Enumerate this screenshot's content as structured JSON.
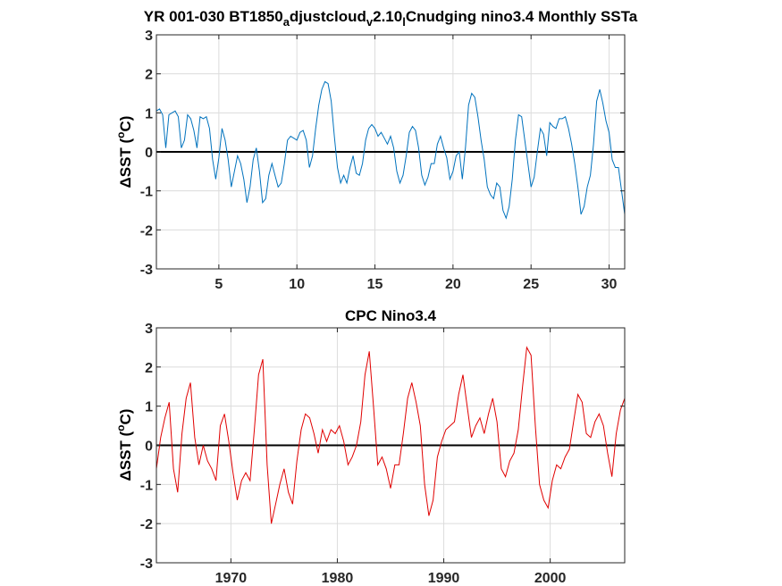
{
  "chart_data": [
    {
      "type": "line",
      "title": "YR 001-030 BT1850",
      "title_parts": [
        {
          "text": "YR 001-030 BT1850",
          "sub": false
        },
        {
          "text": "a",
          "sub": true
        },
        {
          "text": "djustcloud",
          "sub": false
        },
        {
          "text": "v",
          "sub": true
        },
        {
          "text": "2.10",
          "sub": false
        },
        {
          "text": "l",
          "sub": true
        },
        {
          "text": "Cnudging nino3.4 Monthly SSTa",
          "sub": false
        }
      ],
      "ylabel": "ΔSST (°C)",
      "ylabel_parts": {
        "pre": "ΔSST (",
        "sup": "o",
        "post": "C)"
      },
      "xlim": [
        1,
        31
      ],
      "ylim": [
        -3,
        3
      ],
      "xticks": [
        5,
        10,
        15,
        20,
        25,
        30
      ],
      "xtick_labels": [
        "5",
        "10",
        "15",
        "20",
        "25",
        "30"
      ],
      "yticks": [
        -3,
        -2,
        -1,
        0,
        1,
        2,
        3
      ],
      "ytick_labels": [
        "-3",
        "-2",
        "-1",
        "0",
        "1",
        "2",
        "3"
      ],
      "grid": true,
      "zero_line": true,
      "series": [
        {
          "color": "#0072bd",
          "x": [
            1.0,
            1.2,
            1.4,
            1.6,
            1.8,
            2.0,
            2.2,
            2.4,
            2.6,
            2.8,
            3.0,
            3.2,
            3.4,
            3.6,
            3.8,
            4.0,
            4.2,
            4.4,
            4.6,
            4.8,
            5.0,
            5.2,
            5.4,
            5.6,
            5.8,
            6.0,
            6.2,
            6.4,
            6.6,
            6.8,
            7.0,
            7.2,
            7.4,
            7.6,
            7.8,
            8.0,
            8.2,
            8.4,
            8.6,
            8.8,
            9.0,
            9.2,
            9.4,
            9.6,
            9.8,
            10.0,
            10.2,
            10.4,
            10.6,
            10.8,
            11.0,
            11.2,
            11.4,
            11.6,
            11.8,
            12.0,
            12.2,
            12.4,
            12.6,
            12.8,
            13.0,
            13.2,
            13.4,
            13.6,
            13.8,
            14.0,
            14.2,
            14.4,
            14.6,
            14.8,
            15.0,
            15.2,
            15.4,
            15.6,
            15.8,
            16.0,
            16.2,
            16.4,
            16.6,
            16.8,
            17.0,
            17.2,
            17.4,
            17.6,
            17.8,
            18.0,
            18.2,
            18.4,
            18.6,
            18.8,
            19.0,
            19.2,
            19.4,
            19.6,
            19.8,
            20.0,
            20.2,
            20.4,
            20.6,
            20.8,
            21.0,
            21.2,
            21.4,
            21.6,
            21.8,
            22.0,
            22.2,
            22.4,
            22.6,
            22.8,
            23.0,
            23.2,
            23.4,
            23.6,
            23.8,
            24.0,
            24.2,
            24.4,
            24.6,
            24.8,
            25.0,
            25.2,
            25.4,
            25.6,
            25.8,
            26.0,
            26.2,
            26.4,
            26.6,
            26.8,
            27.0,
            27.2,
            27.4,
            27.6,
            27.8,
            28.0,
            28.2,
            28.4,
            28.6,
            28.8,
            29.0,
            29.2,
            29.4,
            29.6,
            29.8,
            30.0,
            30.2,
            30.4,
            30.6,
            30.8,
            31.0
          ],
          "y": [
            1.05,
            1.1,
            0.95,
            0.1,
            0.95,
            1.0,
            1.05,
            0.9,
            0.1,
            0.3,
            0.95,
            0.85,
            0.55,
            0.1,
            0.9,
            0.85,
            0.9,
            0.6,
            -0.2,
            -0.7,
            -0.15,
            0.6,
            0.3,
            -0.2,
            -0.9,
            -0.5,
            -0.1,
            -0.3,
            -0.7,
            -1.3,
            -0.9,
            -0.2,
            0.1,
            -0.5,
            -1.3,
            -1.2,
            -0.6,
            -0.3,
            -0.6,
            -0.9,
            -0.8,
            -0.3,
            0.3,
            0.4,
            0.35,
            0.3,
            0.5,
            0.55,
            0.3,
            -0.4,
            -0.1,
            0.6,
            1.2,
            1.6,
            1.8,
            1.75,
            1.3,
            0.4,
            -0.4,
            -0.8,
            -0.6,
            -0.8,
            -0.4,
            -0.1,
            -0.55,
            -0.6,
            -0.3,
            0.3,
            0.6,
            0.7,
            0.6,
            0.4,
            0.5,
            0.35,
            0.2,
            0.4,
            0.1,
            -0.5,
            -0.8,
            -0.6,
            -0.1,
            0.5,
            0.65,
            0.55,
            0.1,
            -0.6,
            -0.85,
            -0.65,
            -0.3,
            -0.3,
            0.2,
            0.4,
            0.1,
            -0.15,
            -0.7,
            -0.5,
            -0.1,
            0.0,
            -0.7,
            0.1,
            1.2,
            1.5,
            1.4,
            0.9,
            0.3,
            -0.2,
            -0.9,
            -1.1,
            -1.2,
            -0.8,
            -0.9,
            -1.5,
            -1.7,
            -1.4,
            -0.7,
            0.3,
            0.95,
            0.9,
            0.3,
            -0.3,
            -0.9,
            -0.65,
            0.0,
            0.6,
            0.45,
            -0.1,
            0.75,
            0.65,
            0.6,
            0.85,
            0.85,
            0.9,
            0.6,
            0.2,
            -0.3,
            -0.9,
            -1.6,
            -1.4,
            -0.9,
            -0.6,
            0.2,
            1.3,
            1.6,
            1.25,
            0.8,
            0.5,
            -0.2,
            -0.4,
            -0.4,
            -1.0,
            -1.6
          ]
        }
      ]
    },
    {
      "type": "line",
      "title": "CPC Nino3.4",
      "ylabel": "ΔSST (°C)",
      "ylabel_parts": {
        "pre": "ΔSST (",
        "sup": "o",
        "post": "C)"
      },
      "xlim": [
        1963,
        2007
      ],
      "ylim": [
        -3,
        3
      ],
      "xticks": [
        1970,
        1980,
        1990,
        2000
      ],
      "xtick_labels": [
        "1970",
        "1980",
        "1990",
        "2000"
      ],
      "yticks": [
        -3,
        -2,
        -1,
        0,
        1,
        2,
        3
      ],
      "ytick_labels": [
        "-3",
        "-2",
        "-1",
        "0",
        "1",
        "2",
        "3"
      ],
      "grid": true,
      "zero_line": true,
      "series": [
        {
          "color": "#e00000",
          "x": [
            1963.0,
            1963.4,
            1963.8,
            1964.2,
            1964.6,
            1965.0,
            1965.4,
            1965.8,
            1966.2,
            1966.6,
            1967.0,
            1967.4,
            1967.8,
            1968.2,
            1968.6,
            1969.0,
            1969.4,
            1969.8,
            1970.2,
            1970.6,
            1971.0,
            1971.4,
            1971.8,
            1972.2,
            1972.6,
            1973.0,
            1973.4,
            1973.8,
            1974.2,
            1974.6,
            1975.0,
            1975.4,
            1975.8,
            1976.2,
            1976.6,
            1977.0,
            1977.4,
            1977.8,
            1978.2,
            1978.6,
            1979.0,
            1979.4,
            1979.8,
            1980.2,
            1980.6,
            1981.0,
            1981.4,
            1981.8,
            1982.2,
            1982.6,
            1983.0,
            1983.4,
            1983.8,
            1984.2,
            1984.6,
            1985.0,
            1985.4,
            1985.8,
            1986.2,
            1986.6,
            1987.0,
            1987.4,
            1987.8,
            1988.2,
            1988.6,
            1989.0,
            1989.4,
            1989.8,
            1990.2,
            1990.6,
            1991.0,
            1991.4,
            1991.8,
            1992.2,
            1992.6,
            1993.0,
            1993.4,
            1993.8,
            1994.2,
            1994.6,
            1995.0,
            1995.4,
            1995.8,
            1996.2,
            1996.6,
            1997.0,
            1997.4,
            1997.8,
            1998.2,
            1998.6,
            1999.0,
            1999.4,
            1999.8,
            2000.2,
            2000.6,
            2001.0,
            2001.4,
            2001.8,
            2002.2,
            2002.6,
            2003.0,
            2003.4,
            2003.8,
            2004.2,
            2004.6,
            2005.0,
            2005.4,
            2005.8,
            2006.2,
            2006.6,
            2007.0
          ],
          "y": [
            -0.6,
            0.2,
            0.7,
            1.1,
            -0.6,
            -1.2,
            0.3,
            1.2,
            1.6,
            0.2,
            -0.5,
            0.0,
            -0.4,
            -0.6,
            -0.9,
            0.5,
            0.8,
            0.1,
            -0.7,
            -1.4,
            -0.9,
            -0.7,
            -0.9,
            0.4,
            1.8,
            2.2,
            -0.5,
            -2.0,
            -1.5,
            -1.0,
            -0.6,
            -1.2,
            -1.5,
            -0.4,
            0.4,
            0.8,
            0.7,
            0.3,
            -0.2,
            0.4,
            0.1,
            0.4,
            0.3,
            0.5,
            0.1,
            -0.5,
            -0.3,
            0.0,
            0.6,
            1.8,
            2.4,
            1.0,
            -0.5,
            -0.3,
            -0.6,
            -1.1,
            -0.5,
            -0.5,
            0.3,
            1.2,
            1.6,
            1.1,
            0.5,
            -1.0,
            -1.8,
            -1.4,
            -0.3,
            0.1,
            0.4,
            0.5,
            0.6,
            1.3,
            1.8,
            1.0,
            0.2,
            0.5,
            0.7,
            0.3,
            0.8,
            1.2,
            0.6,
            -0.6,
            -0.8,
            -0.4,
            -0.2,
            0.4,
            1.5,
            2.5,
            2.3,
            0.5,
            -1.0,
            -1.4,
            -1.6,
            -0.9,
            -0.5,
            -0.6,
            -0.3,
            -0.1,
            0.6,
            1.3,
            1.1,
            0.3,
            0.2,
            0.6,
            0.8,
            0.5,
            -0.2,
            -0.8,
            0.3,
            0.9,
            1.2
          ]
        }
      ]
    }
  ]
}
